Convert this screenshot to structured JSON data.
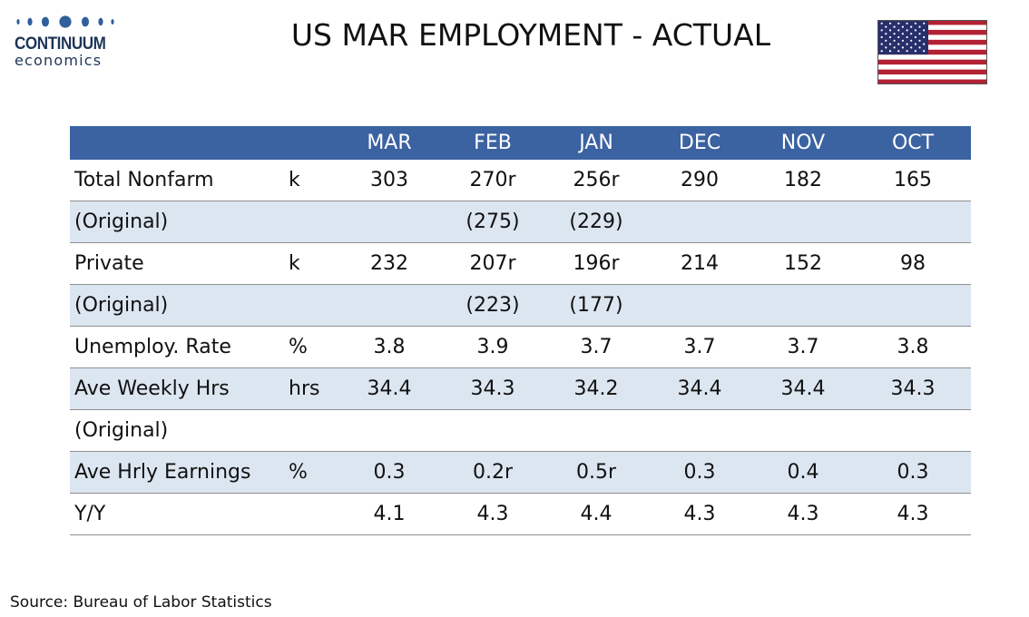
{
  "brand": {
    "name": "CONTINUUM",
    "sub": "economics",
    "color": "#1d3557"
  },
  "title": "US MAR EMPLOYMENT - ACTUAL",
  "flag_icon": "us-flag-icon",
  "table": {
    "header_color": "#3b62a1",
    "alt_row_color": "#dce6f1",
    "columns": [
      "MAR",
      "FEB",
      "JAN",
      "DEC",
      "NOV",
      "OCT"
    ],
    "rows": [
      {
        "label": "Total Nonfarm",
        "unit": "k",
        "values": [
          "303",
          "270r",
          "256r",
          "290",
          "182",
          "165"
        ]
      },
      {
        "label": "(Original)",
        "unit": "",
        "values": [
          "",
          "(275)",
          "(229)",
          "",
          "",
          ""
        ]
      },
      {
        "label": "Private",
        "unit": "k",
        "values": [
          "232",
          "207r",
          "196r",
          "214",
          "152",
          "98"
        ]
      },
      {
        "label": "(Original)",
        "unit": "",
        "values": [
          "",
          "(223)",
          "(177)",
          "",
          "",
          ""
        ]
      },
      {
        "label": "Unemploy. Rate",
        "unit": "%",
        "values": [
          "3.8",
          "3.9",
          "3.7",
          "3.7",
          "3.7",
          "3.8"
        ]
      },
      {
        "label": "Ave Weekly Hrs",
        "unit": "hrs",
        "values": [
          "34.4",
          "34.3",
          "34.2",
          "34.4",
          "34.4",
          "34.3"
        ]
      },
      {
        "label": "(Original)",
        "unit": "",
        "values": [
          "",
          "",
          "",
          "",
          "",
          ""
        ]
      },
      {
        "label": "Ave Hrly Earnings",
        "unit": "%",
        "values": [
          "0.3",
          "0.2r",
          "0.5r",
          "0.3",
          "0.4",
          "0.3"
        ]
      },
      {
        "label": "Y/Y",
        "unit": "",
        "values": [
          "4.1",
          "4.3",
          "4.4",
          "4.3",
          "4.3",
          "4.3"
        ]
      }
    ]
  },
  "source": "Source: Bureau of Labor Statistics"
}
